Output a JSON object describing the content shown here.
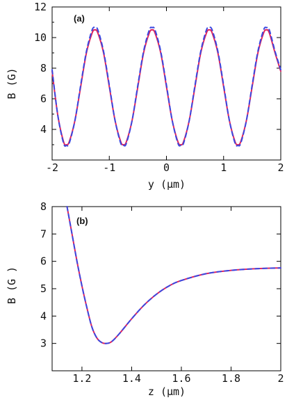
{
  "chart_data": [
    {
      "type": "line",
      "panel_label": "(a)",
      "xlabel": "y (μm)",
      "ylabel": "B (G)",
      "xlim": [
        -2,
        2
      ],
      "ylim": [
        2,
        12
      ],
      "xticks": [
        -2,
        -1,
        0,
        1,
        2
      ],
      "yticks": [
        4,
        6,
        8,
        10,
        12
      ],
      "x_tick_labels": [
        "-2",
        "-1",
        "0",
        "1",
        "2"
      ],
      "y_tick_labels": [
        "4",
        "6",
        "8",
        "10",
        "12"
      ],
      "grid": false,
      "series": [
        {
          "style": "solid",
          "color": "#e0245e",
          "x": [
            -2.0,
            -1.9,
            -1.8,
            -1.75,
            -1.7,
            -1.6,
            -1.5,
            -1.4,
            -1.3,
            -1.25,
            -1.2,
            -1.1,
            -1.0,
            -0.9,
            -0.8,
            -0.75,
            -0.7,
            -0.6,
            -0.5,
            -0.4,
            -0.3,
            -0.25,
            -0.2,
            -0.1,
            0.0,
            0.1,
            0.2,
            0.25,
            0.3,
            0.4,
            0.5,
            0.6,
            0.7,
            0.75,
            0.8,
            0.9,
            1.0,
            1.1,
            1.2,
            1.25,
            1.3,
            1.4,
            1.5,
            1.6,
            1.7,
            1.75,
            1.8,
            1.9,
            2.0
          ],
          "y": [
            7.8,
            4.9,
            3.2,
            3.0,
            3.2,
            4.6,
            6.8,
            9.0,
            10.3,
            10.5,
            10.3,
            9.0,
            6.8,
            4.6,
            3.2,
            3.0,
            3.2,
            4.6,
            6.8,
            9.0,
            10.3,
            10.5,
            10.3,
            9.0,
            6.8,
            4.6,
            3.2,
            3.0,
            3.2,
            4.6,
            6.8,
            9.0,
            10.3,
            10.5,
            10.3,
            9.0,
            6.8,
            4.6,
            3.2,
            3.0,
            3.2,
            4.6,
            6.8,
            9.0,
            10.3,
            10.5,
            10.3,
            9.0,
            7.8
          ]
        },
        {
          "style": "dashed",
          "color": "#3b48e0",
          "x": [
            -2.0,
            -1.9,
            -1.8,
            -1.75,
            -1.7,
            -1.6,
            -1.5,
            -1.4,
            -1.3,
            -1.25,
            -1.2,
            -1.1,
            -1.0,
            -0.9,
            -0.8,
            -0.75,
            -0.7,
            -0.6,
            -0.5,
            -0.4,
            -0.3,
            -0.25,
            -0.2,
            -0.1,
            0.0,
            0.1,
            0.2,
            0.25,
            0.3,
            0.4,
            0.5,
            0.6,
            0.7,
            0.75,
            0.8,
            0.9,
            1.0,
            1.1,
            1.2,
            1.25,
            1.3,
            1.4,
            1.5,
            1.6,
            1.7,
            1.75,
            1.8,
            1.9,
            2.0
          ],
          "y": [
            7.9,
            4.9,
            3.1,
            2.95,
            3.1,
            4.6,
            6.9,
            9.1,
            10.5,
            10.65,
            10.5,
            9.1,
            6.9,
            4.6,
            3.1,
            2.95,
            3.1,
            4.6,
            6.9,
            9.1,
            10.5,
            10.65,
            10.5,
            9.1,
            6.9,
            4.6,
            3.1,
            2.95,
            3.1,
            4.6,
            6.9,
            9.1,
            10.5,
            10.65,
            10.5,
            9.1,
            6.9,
            4.6,
            3.1,
            2.95,
            3.1,
            4.6,
            6.9,
            9.1,
            10.5,
            10.65,
            10.5,
            9.1,
            7.9
          ]
        }
      ]
    },
    {
      "type": "line",
      "panel_label": "(b)",
      "xlabel": "z (μm)",
      "ylabel": "B (G )",
      "xlim": [
        1.08,
        2.0
      ],
      "ylim": [
        2,
        8
      ],
      "xticks": [
        1.2,
        1.4,
        1.6,
        1.8,
        2.0
      ],
      "yticks": [
        3,
        4,
        5,
        6,
        7,
        8
      ],
      "x_tick_labels": [
        "1.2",
        "1.4",
        "1.6",
        "1.8",
        "2"
      ],
      "y_tick_labels": [
        "3",
        "4",
        "5",
        "6",
        "7",
        "8"
      ],
      "grid": false,
      "series": [
        {
          "style": "solid",
          "color": "#e0245e",
          "x": [
            1.14,
            1.16,
            1.18,
            1.2,
            1.22,
            1.24,
            1.26,
            1.28,
            1.3,
            1.32,
            1.35,
            1.4,
            1.45,
            1.5,
            1.55,
            1.6,
            1.7,
            1.8,
            1.9,
            2.0
          ],
          "y": [
            8.0,
            7.0,
            6.0,
            5.1,
            4.3,
            3.6,
            3.2,
            3.03,
            3.0,
            3.07,
            3.35,
            3.9,
            4.4,
            4.8,
            5.1,
            5.3,
            5.55,
            5.67,
            5.73,
            5.76
          ]
        },
        {
          "style": "dashed",
          "color": "#3b48e0",
          "x": [
            1.14,
            1.16,
            1.18,
            1.2,
            1.22,
            1.24,
            1.26,
            1.28,
            1.3,
            1.32,
            1.35,
            1.4,
            1.45,
            1.5,
            1.55,
            1.6,
            1.7,
            1.8,
            1.9,
            2.0
          ],
          "y": [
            8.0,
            7.0,
            6.0,
            5.1,
            4.3,
            3.6,
            3.2,
            3.03,
            3.0,
            3.07,
            3.35,
            3.9,
            4.4,
            4.8,
            5.1,
            5.3,
            5.55,
            5.67,
            5.73,
            5.76
          ]
        }
      ]
    }
  ]
}
